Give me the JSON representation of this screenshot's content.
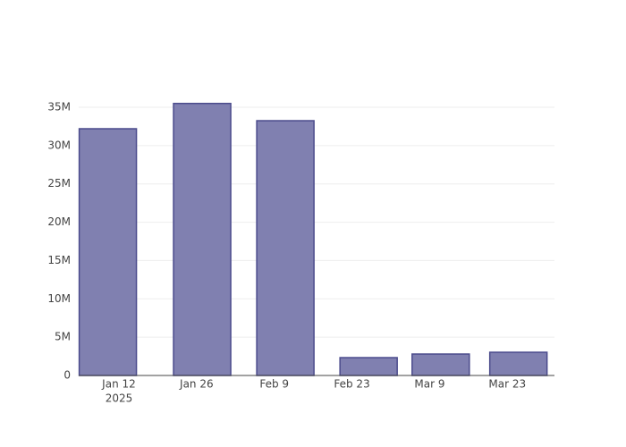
{
  "chart_data": {
    "type": "bar",
    "x": [
      "2025-01-10",
      "2025-01-27",
      "2025-02-11",
      "2025-02-26",
      "2025-03-11",
      "2025-03-25"
    ],
    "values": [
      32200000,
      35500000,
      33250000,
      2330000,
      2800000,
      3030000
    ],
    "color": "#8080b0",
    "edge_color": "#4b4b8c",
    "xlim": [
      "2025-01-04T18:00",
      "2025-03-31T12:00"
    ],
    "xticks": [
      {
        "value": "2025-01-12",
        "label": "Jan 12"
      },
      {
        "value": "2025-01-26",
        "label": "Jan 26"
      },
      {
        "value": "2025-02-09",
        "label": "Feb 9"
      },
      {
        "value": "2025-02-23",
        "label": "Feb 23"
      },
      {
        "value": "2025-03-09",
        "label": "Mar 9"
      },
      {
        "value": "2025-03-23",
        "label": "Mar 23"
      }
    ],
    "x_year_label": "2025",
    "ylim": [
      0,
      35000000
    ],
    "yticks": [
      0,
      {
        "value": 5000000,
        "label": "5M"
      },
      {
        "value": 10000000,
        "label": "10M"
      },
      {
        "value": 15000000,
        "label": "15M"
      },
      {
        "value": 20000000,
        "label": "20M"
      },
      {
        "value": 25000000,
        "label": "25M"
      },
      {
        "value": 30000000,
        "label": "30M"
      },
      {
        "value": 35000000,
        "label": "35M"
      }
    ],
    "grid": true
  }
}
